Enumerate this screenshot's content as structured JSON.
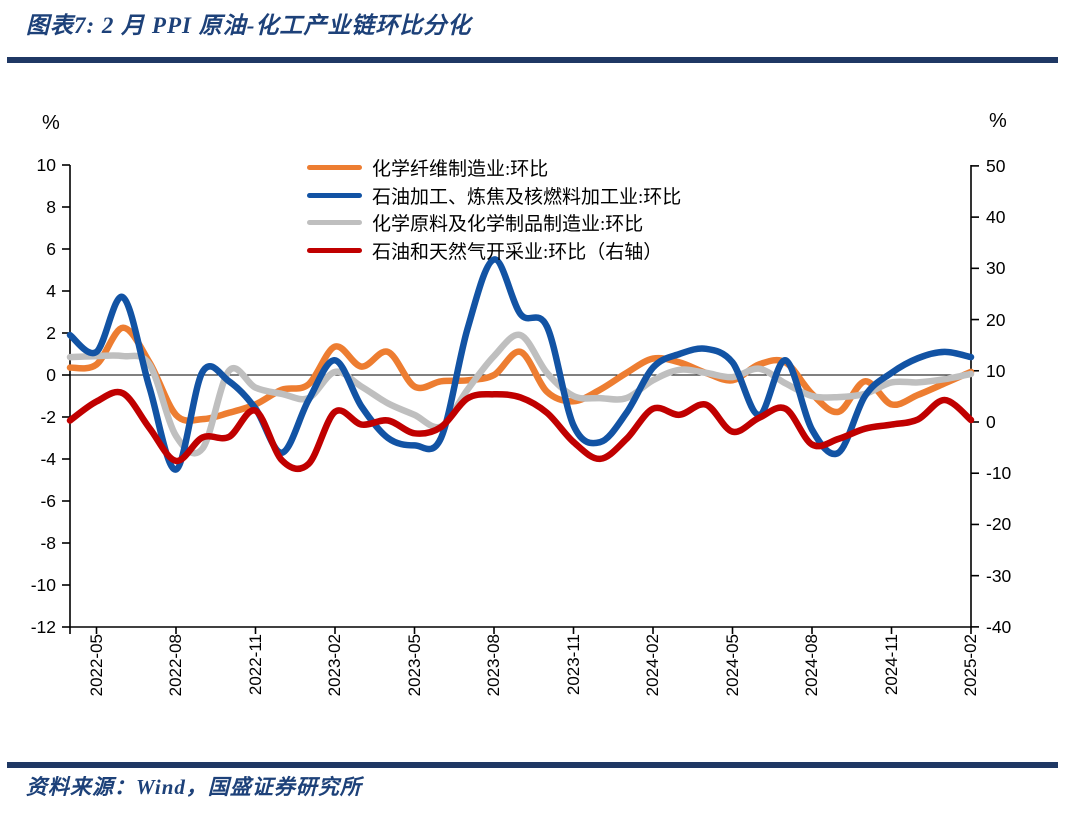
{
  "title": "图表7: 2 月 PPI 原油-化工产业链环比分化",
  "footer": {
    "text": "资料来源：Wind，国盛证券研究所"
  },
  "colors": {
    "navy_text": "#1D4179",
    "divider_bar": "#1F3864",
    "axis_line": "#000000"
  },
  "axes": {
    "left_unit": "%",
    "right_unit": "%"
  },
  "chart_data": {
    "type": "line",
    "title": "图表7: 2 月 PPI 原油-化工产业链环比分化",
    "grid": false,
    "legend_position": "top-center",
    "x": [
      "2022-04",
      "2022-05",
      "2022-06",
      "2022-07",
      "2022-08",
      "2022-09",
      "2022-10",
      "2022-11",
      "2022-12",
      "2023-01",
      "2023-02",
      "2023-03",
      "2023-04",
      "2023-05",
      "2023-06",
      "2023-07",
      "2023-08",
      "2023-09",
      "2023-10",
      "2023-11",
      "2023-12",
      "2024-01",
      "2024-02",
      "2024-03",
      "2024-04",
      "2024-05",
      "2024-06",
      "2024-07",
      "2024-08",
      "2024-09",
      "2024-10",
      "2024-11",
      "2024-12",
      "2025-01",
      "2025-02"
    ],
    "x_tick_labels": [
      "2022-05",
      "2022-08",
      "2022-11",
      "2023-02",
      "2023-05",
      "2023-08",
      "2023-11",
      "2024-02",
      "2024-05",
      "2024-08",
      "2024-11",
      "2025-02"
    ],
    "left_axis": {
      "label": "%",
      "range": [
        -12,
        10
      ],
      "ticks": [
        10,
        8,
        6,
        4,
        2,
        0,
        -2,
        -4,
        -6,
        -8,
        -10,
        -12
      ]
    },
    "right_axis": {
      "label": "%",
      "range": [
        -40,
        50
      ],
      "ticks": [
        50,
        40,
        30,
        20,
        10,
        0,
        -10,
        -20,
        -30,
        -40
      ]
    },
    "series": [
      {
        "name": "化学纤维制造业:环比",
        "color": "#ED7D31",
        "axis": "left",
        "values": [
          0.35,
          0.5,
          2.25,
          0.6,
          -1.9,
          -2.1,
          -1.8,
          -1.4,
          -0.7,
          -0.45,
          1.35,
          0.4,
          1.1,
          -0.55,
          -0.3,
          -0.25,
          0.0,
          1.1,
          -0.8,
          -1.25,
          -0.7,
          0.1,
          0.78,
          0.6,
          0.1,
          -0.25,
          0.5,
          0.6,
          -0.9,
          -1.75,
          -0.3,
          -1.4,
          -0.95,
          -0.4,
          0.15
        ]
      },
      {
        "name": "石油加工、炼焦及核燃料加工业:环比",
        "color": "#1253A4",
        "axis": "left",
        "values": [
          1.9,
          1.1,
          3.7,
          -0.6,
          -4.5,
          0.15,
          -0.3,
          -1.6,
          -3.7,
          -1.2,
          0.7,
          -1.5,
          -3.0,
          -3.35,
          -3.0,
          2.2,
          5.5,
          2.9,
          2.3,
          -2.4,
          -3.2,
          -1.8,
          0.35,
          1.0,
          1.25,
          0.6,
          -1.9,
          0.7,
          -2.6,
          -3.7,
          -1.0,
          0.1,
          0.8,
          1.1,
          0.85
        ]
      },
      {
        "name": "化学原料及化学制品制造业:环比",
        "color": "#BFBFBF",
        "axis": "left",
        "values": [
          0.85,
          0.9,
          0.9,
          0.5,
          -2.9,
          -3.5,
          0.2,
          -0.6,
          -0.9,
          -1.1,
          0.15,
          -0.55,
          -1.35,
          -1.9,
          -2.45,
          -0.7,
          0.9,
          1.9,
          0.1,
          -1.0,
          -1.1,
          -1.1,
          -0.25,
          0.25,
          0.1,
          -0.1,
          0.3,
          -0.4,
          -1.0,
          -1.05,
          -0.9,
          -0.35,
          -0.35,
          -0.2,
          0.05
        ]
      },
      {
        "name": "石油和天然气开采业:环比（右轴）",
        "color": "#C00000",
        "axis": "right",
        "values": [
          0.3,
          4.0,
          5.6,
          -1.2,
          -7.6,
          -3.0,
          -2.9,
          2.2,
          -7.5,
          -8.2,
          2.0,
          -0.5,
          0.3,
          -2.2,
          -1.0,
          4.6,
          5.4,
          4.8,
          1.8,
          -3.9,
          -7.2,
          -3.3,
          2.6,
          1.4,
          3.4,
          -1.9,
          0.8,
          2.6,
          -4.4,
          -3.3,
          -1.3,
          -0.5,
          0.5,
          4.3,
          0.4
        ]
      }
    ],
    "draw_order": [
      0,
      2,
      1,
      3
    ]
  }
}
